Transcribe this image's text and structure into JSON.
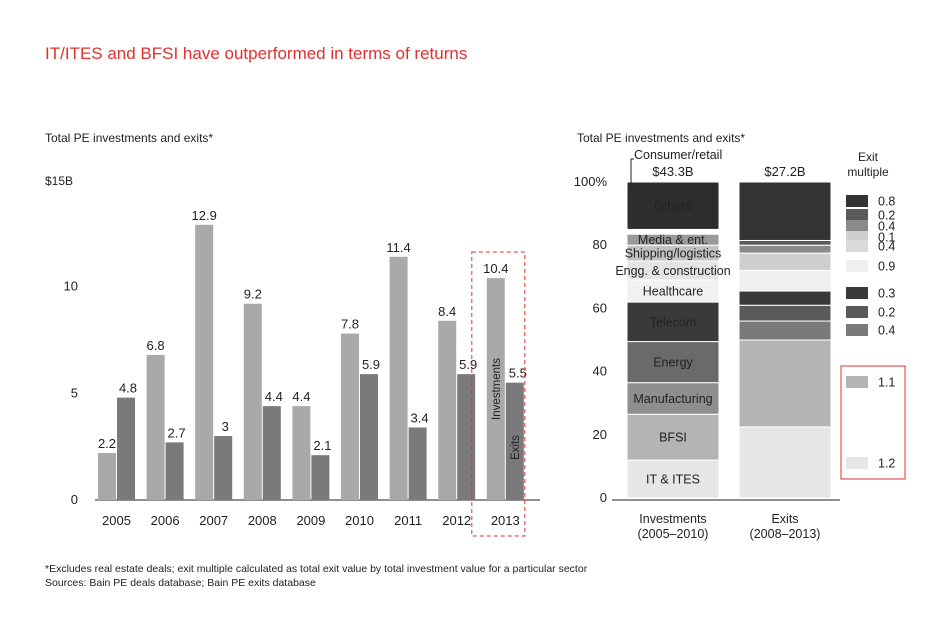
{
  "title": "IT/ITES and BFSI have outperformed in terms of returns",
  "colors": {
    "title": "#e0312f",
    "investments": "#a9a9ab",
    "exits": "#7a7a7c",
    "highlight": "#e0312f"
  },
  "chart_data": [
    {
      "type": "bar",
      "subtitle": "Total PE investments and exits*",
      "y_unit_label": "$15B",
      "ylim": [
        0,
        15
      ],
      "yticks": [
        0,
        5,
        10
      ],
      "categories": [
        "2005",
        "2006",
        "2007",
        "2008",
        "2009",
        "2010",
        "2011",
        "2012",
        "2013"
      ],
      "series": [
        {
          "name": "Investments",
          "values": [
            2.2,
            6.8,
            12.9,
            9.2,
            4.4,
            7.8,
            11.4,
            8.4,
            10.4
          ]
        },
        {
          "name": "Exits",
          "values": [
            4.8,
            2.7,
            3.0,
            4.4,
            2.1,
            5.9,
            3.4,
            5.9,
            5.5
          ]
        }
      ],
      "highlighted_category": "2013",
      "inline_series_labels": [
        "Investments",
        "Exits"
      ]
    },
    {
      "type": "bar",
      "stacked": true,
      "subtitle": "Total PE investments and exits*",
      "ylim": [
        0,
        100
      ],
      "yticks": [
        "0",
        "20",
        "40",
        "60",
        "80",
        "100%"
      ],
      "columns": [
        {
          "label": "Investments",
          "sublabel": "(2005–2010)",
          "total": "$43.3B"
        },
        {
          "label": "Exits",
          "sublabel": "(2008–2013)",
          "total": "$27.2B"
        }
      ],
      "callout": "Consumer/retail",
      "segments": [
        "IT & ITES",
        "BFSI",
        "Manufacturing",
        "Energy",
        "Telecom",
        "Healthcare",
        "Engg. & construction",
        "Shipping/logistics",
        "Media & ent.",
        "Consumer/retail",
        "Others"
      ],
      "investments_pct": [
        12,
        14.5,
        10,
        13,
        12.5,
        7,
        6,
        5,
        3.5,
        1.5,
        15
      ],
      "exits_pct": [
        22.5,
        27.5,
        6,
        5,
        4.5,
        6.5,
        0,
        5.5,
        2.5,
        1.5,
        18.5
      ],
      "exit_multiple_header": "Exit\nmultiple",
      "exit_multiples": [
        "1.2",
        "1.1",
        "0.4",
        "0.2",
        "0.3",
        "0.9",
        "0.4",
        "0.1",
        "0.4",
        "0.2",
        "0.8"
      ],
      "highlighted_multiples": [
        "1.1",
        "1.2"
      ]
    }
  ],
  "footnote": "*Excludes real estate deals; exit multiple calculated as total exit value by total investment value for a particular sector",
  "sources": "Sources: Bain PE deals database; Bain PE exits database"
}
